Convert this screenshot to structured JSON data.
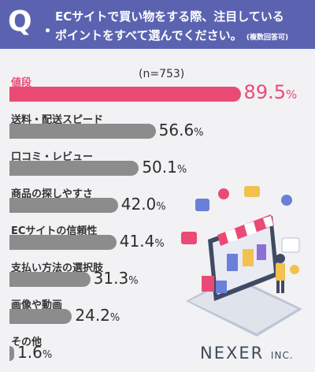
{
  "question": {
    "mark": "Q",
    "line1": "ECサイトで買い物をする際、注目している",
    "line2": "ポイントをすべて選んでください。",
    "note": "(複数回答可)"
  },
  "sample_label": "(n=753)",
  "logo": {
    "main": "NEXER",
    "sub": "INC."
  },
  "colors": {
    "header": "#5b63b1",
    "highlight": "#ea4b76",
    "bar": "#8c8c8c",
    "background": "#f2f2f4"
  },
  "chart_data": {
    "type": "bar",
    "orientation": "horizontal",
    "categories": [
      "値段",
      "送料・配送スピード",
      "口コミ・レビュー",
      "商品の探しやすさ",
      "ECサイトの信頼性",
      "支払い方法の選択肢",
      "画像や動画",
      "その他"
    ],
    "values": [
      89.5,
      56.6,
      50.1,
      42.0,
      41.4,
      31.3,
      24.2,
      1.6
    ],
    "value_labels": [
      "89.5",
      "56.6",
      "50.1",
      "42.0",
      "41.4",
      "31.3",
      "24.2",
      "1.6"
    ],
    "unit": "%",
    "highlight_index": 0,
    "xlim": [
      0,
      100
    ]
  }
}
